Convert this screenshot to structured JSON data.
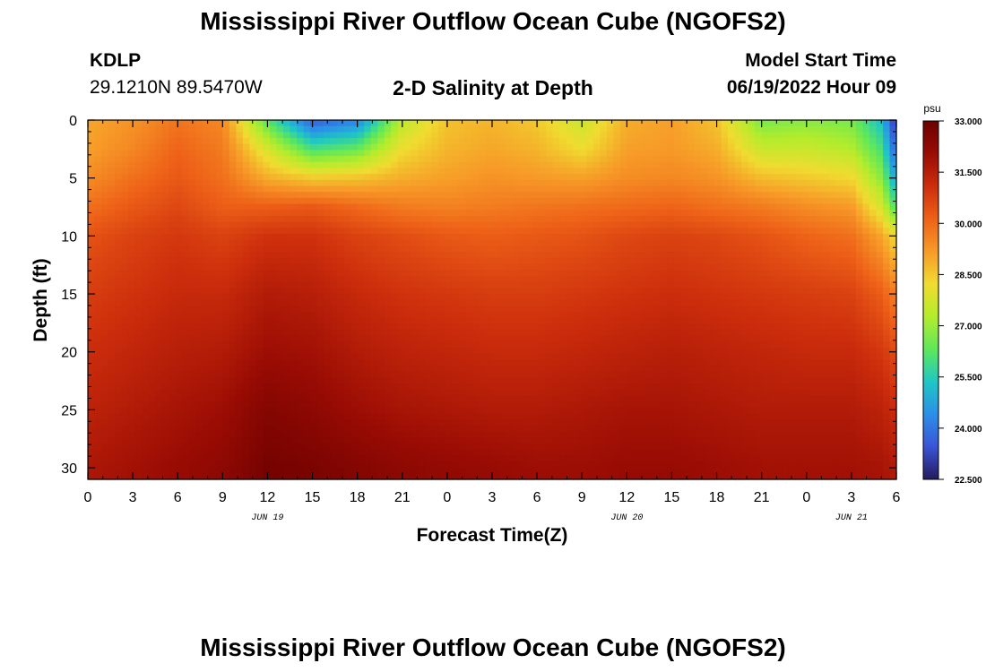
{
  "header": {
    "title": "Mississippi River Outflow Ocean Cube (NGOFS2)",
    "station": "KDLP",
    "coordinates": "29.1210N  89.5470W",
    "subtitle": "2-D Salinity at Depth",
    "model_start_label": "Model Start Time",
    "model_start_value": "06/19/2022 Hour 09",
    "footer_title": "Mississippi River Outflow Ocean Cube (NGOFS2)"
  },
  "chart_data": {
    "type": "heatmap",
    "xlabel": "Forecast Time(Z)",
    "ylabel": "Depth (ft)",
    "x_range": [
      0,
      54
    ],
    "y_range": [
      0,
      31
    ],
    "y_inverted": true,
    "x_tick_labels": [
      "0",
      "3",
      "6",
      "9",
      "12",
      "15",
      "18",
      "21",
      "0",
      "3",
      "6",
      "9",
      "12",
      "15",
      "18",
      "21",
      "0",
      "3",
      "6"
    ],
    "y_tick_labels": [
      "0",
      "5",
      "10",
      "15",
      "20",
      "25",
      "30"
    ],
    "date_labels": [
      {
        "text": "JUN 19",
        "hour": 12
      },
      {
        "text": "JUN 20",
        "hour": 36
      },
      {
        "text": "JUN 21",
        "hour": 51
      }
    ],
    "colorbar": {
      "unit": "psu",
      "min": 22.5,
      "max": 33.0,
      "tick_labels": [
        "22.500",
        "24.000",
        "25.500",
        "27.000",
        "28.500",
        "30.000",
        "31.500",
        "33.000"
      ],
      "colors": [
        "#261a5c",
        "#3a54d6",
        "#2b8fe8",
        "#1fc7c4",
        "#5ee85a",
        "#b4ec2c",
        "#f0dc30",
        "#f79a28",
        "#ee6118",
        "#cc2d0c",
        "#9a0c04",
        "#6c0000"
      ]
    },
    "depth_levels": [
      0,
      2.5,
      5,
      7.5,
      10,
      15,
      20,
      25,
      30
    ],
    "time_points": [
      0,
      3,
      6,
      9,
      12,
      15,
      18,
      21,
      24,
      27,
      30,
      33,
      36,
      39,
      42,
      45,
      48,
      51,
      53,
      54
    ],
    "salinity": [
      [
        29.0,
        29.3,
        29.8,
        29.5,
        26.2,
        23.6,
        24.2,
        27.4,
        28.6,
        28.8,
        28.5,
        27.6,
        28.9,
        29.1,
        28.6,
        26.6,
        26.8,
        26.6,
        25.2,
        22.8
      ],
      [
        29.1,
        29.5,
        30.1,
        29.7,
        27.8,
        26.0,
        26.4,
        28.2,
        28.8,
        29.0,
        28.8,
        28.2,
        29.1,
        29.2,
        28.9,
        27.6,
        27.6,
        27.3,
        26.0,
        23.6
      ],
      [
        29.4,
        29.9,
        30.3,
        29.9,
        28.9,
        28.5,
        28.6,
        28.9,
        29.1,
        29.3,
        29.2,
        29.1,
        29.4,
        29.5,
        29.3,
        28.7,
        28.5,
        28.3,
        26.8,
        24.6
      ],
      [
        29.9,
        30.3,
        30.6,
        30.2,
        30.2,
        30.3,
        30.0,
        29.7,
        29.6,
        29.7,
        29.8,
        29.9,
        30.0,
        30.1,
        29.9,
        29.7,
        29.4,
        29.2,
        27.8,
        26.0
      ],
      [
        30.4,
        30.7,
        30.9,
        30.7,
        31.0,
        31.0,
        30.7,
        30.5,
        30.3,
        30.2,
        30.3,
        30.4,
        30.6,
        30.7,
        30.6,
        30.4,
        30.1,
        29.9,
        29.0,
        28.2
      ],
      [
        30.8,
        31.0,
        31.2,
        31.2,
        31.6,
        31.5,
        31.2,
        31.0,
        30.9,
        30.8,
        30.8,
        30.9,
        31.0,
        31.1,
        31.0,
        30.9,
        30.8,
        30.7,
        30.2,
        29.6
      ],
      [
        31.1,
        31.3,
        31.5,
        31.6,
        32.0,
        31.9,
        31.6,
        31.4,
        31.3,
        31.2,
        31.2,
        31.3,
        31.4,
        31.5,
        31.4,
        31.3,
        31.2,
        31.2,
        30.9,
        30.5
      ],
      [
        31.4,
        31.6,
        31.8,
        32.0,
        32.5,
        32.3,
        32.0,
        31.8,
        31.7,
        31.6,
        31.6,
        31.7,
        31.8,
        31.8,
        31.7,
        31.6,
        31.6,
        31.6,
        31.4,
        31.1
      ],
      [
        31.7,
        31.9,
        32.1,
        32.3,
        32.8,
        32.7,
        32.5,
        32.3,
        32.2,
        32.1,
        32.0,
        32.0,
        32.1,
        32.1,
        32.0,
        31.9,
        31.9,
        31.9,
        31.8,
        31.6
      ]
    ]
  }
}
